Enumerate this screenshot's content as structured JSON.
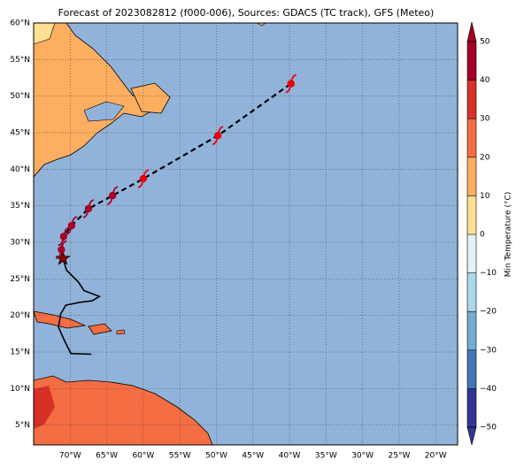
{
  "map": {
    "title": "Forecast of 2023082812 (f000-006), Sources: GDACS (TC track), GFS (Meteo)",
    "xlim": [
      -75,
      -17
    ],
    "ylim": [
      2.3,
      60
    ],
    "xticks": [
      {
        "value": -70,
        "label": "70°W"
      },
      {
        "value": -65,
        "label": "65°W"
      },
      {
        "value": -60,
        "label": "60°W"
      },
      {
        "value": -55,
        "label": "55°W"
      },
      {
        "value": -50,
        "label": "50°W"
      },
      {
        "value": -45,
        "label": "45°W"
      },
      {
        "value": -40,
        "label": "40°W"
      },
      {
        "value": -35,
        "label": "35°W"
      },
      {
        "value": -30,
        "label": "30°W"
      },
      {
        "value": -25,
        "label": "25°W"
      },
      {
        "value": -20,
        "label": "20°W"
      }
    ],
    "yticks": [
      {
        "value": 5,
        "label": "5°N"
      },
      {
        "value": 10,
        "label": "10°N"
      },
      {
        "value": 15,
        "label": "15°N"
      },
      {
        "value": 20,
        "label": "20°N"
      },
      {
        "value": 25,
        "label": "25°N"
      },
      {
        "value": 30,
        "label": "30°N"
      },
      {
        "value": 35,
        "label": "35°N"
      },
      {
        "value": 40,
        "label": "40°N"
      },
      {
        "value": 45,
        "label": "45°N"
      },
      {
        "value": 50,
        "label": "50°N"
      },
      {
        "value": 55,
        "label": "55°N"
      },
      {
        "value": 60,
        "label": "60°N"
      }
    ],
    "grid": true,
    "forecast_track": {
      "lon": [
        -71.0,
        -71.2,
        -70.9,
        -69.8,
        -67.5,
        -64.2,
        -60.0,
        -49.8,
        -39.8
      ],
      "lat": [
        27.8,
        29.0,
        30.8,
        32.3,
        34.6,
        36.4,
        38.7,
        44.6,
        51.7
      ],
      "colors": [
        "#8b0000",
        "#a50026",
        "#a50026",
        "#a50026",
        "#a50026",
        "#a50026",
        "#e8000b",
        "#e8000b",
        "#e8000b"
      ]
    },
    "past_track": {
      "lon": [
        -71.0,
        -70.5,
        -68.9,
        -68.1,
        -66.0,
        -67.0,
        -68.7,
        -70.6,
        -71.3,
        -71.6,
        -70.8,
        -69.9,
        -67.1
      ],
      "lat": [
        27.8,
        26.2,
        24.6,
        23.4,
        22.6,
        22.0,
        21.8,
        21.4,
        20.2,
        18.4,
        16.6,
        14.8,
        14.7
      ]
    },
    "colorbar": {
      "label": "Min Temperature (°C)",
      "lim": [
        -50,
        50
      ],
      "ticks": [
        {
          "value": -50,
          "label": "−50"
        },
        {
          "value": -40,
          "label": "−40"
        },
        {
          "value": -30,
          "label": "−30"
        },
        {
          "value": -20,
          "label": "−20"
        },
        {
          "value": -10,
          "label": "−10"
        },
        0,
        10,
        20,
        30,
        40,
        50
      ],
      "colors": [
        "#313695",
        "#4575b4",
        "#74add1",
        "#abd9e9",
        "#e0f3f8",
        "#fee090",
        "#fdae61",
        "#f46d43",
        "#d73027",
        "#a50026"
      ]
    }
  }
}
